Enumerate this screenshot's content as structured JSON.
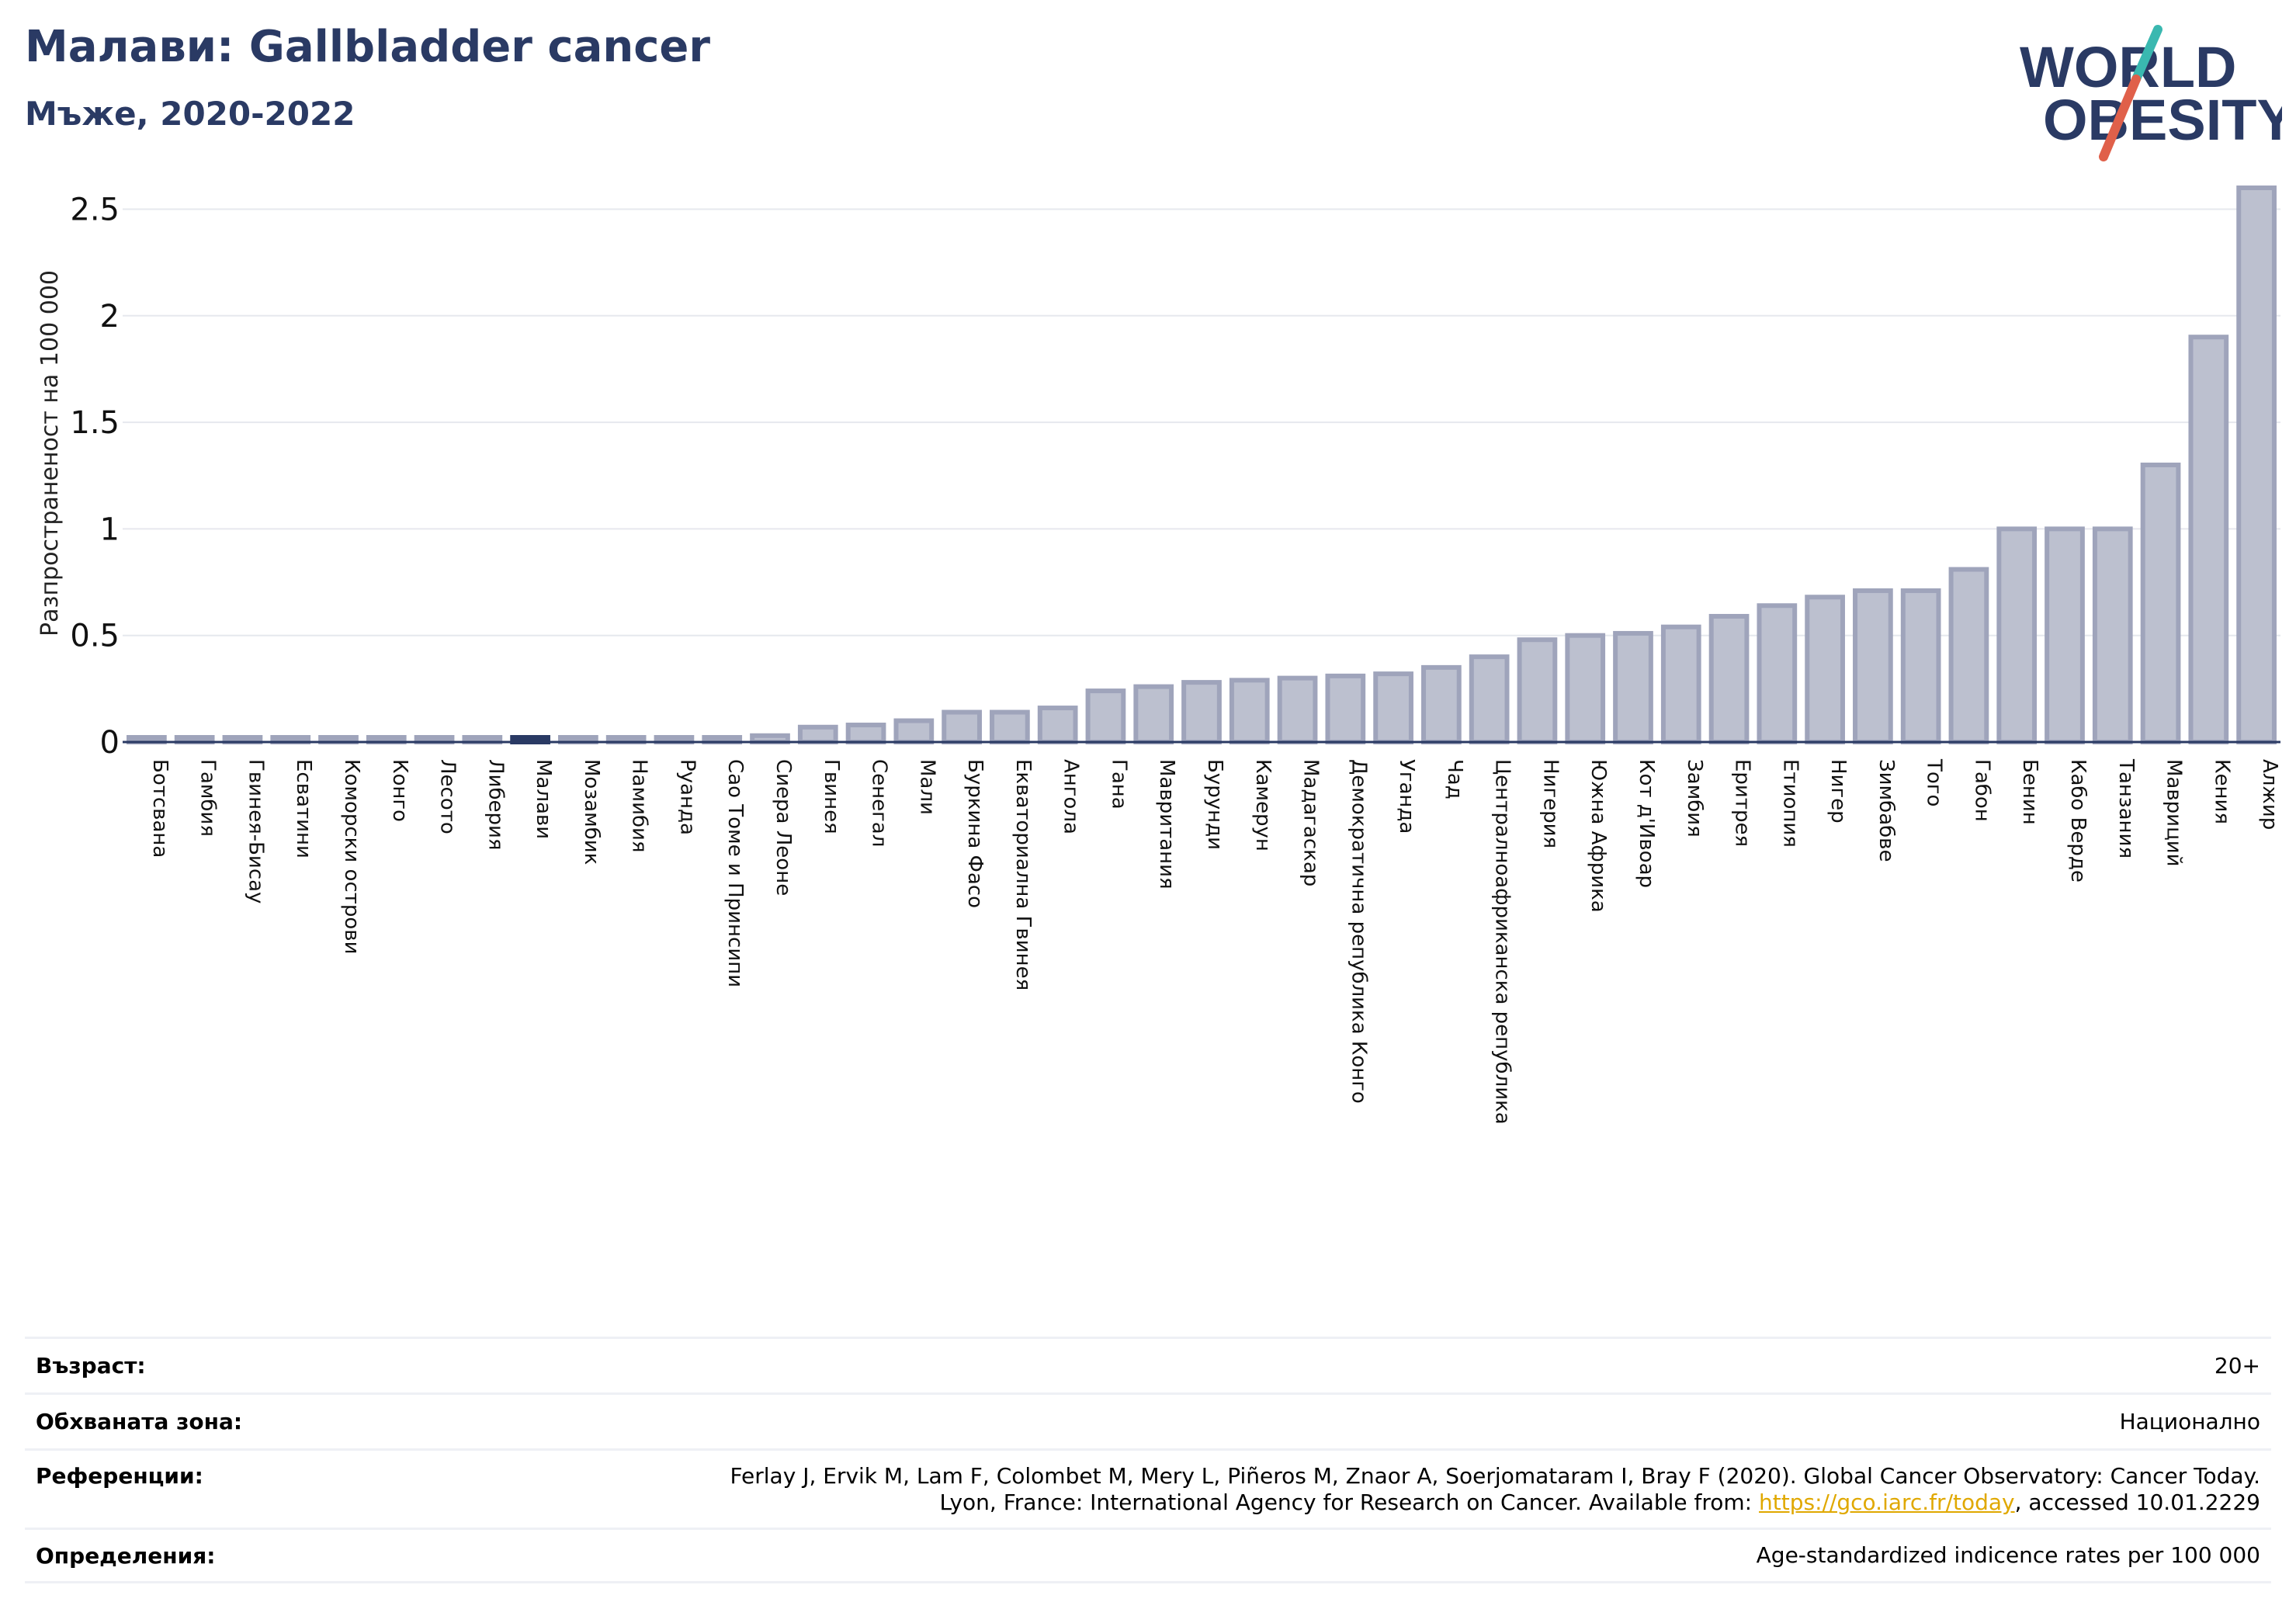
{
  "header": {
    "title": "Малави: Gallbladder cancer",
    "subtitle": "Мъже, 2020-2022",
    "logo_text_line1": "WORLD",
    "logo_text_line2": "OBESITY"
  },
  "colors": {
    "title": "#2a3a64",
    "bar_fill": "#bcc0cf",
    "bar_stroke": "#9fa4bb",
    "highlight_bar": "#2a3a64",
    "grid": "#e6e8ee",
    "logo_navy": "#2a3a64",
    "logo_teal": "#3ab8b0",
    "logo_red": "#e0604a",
    "link": "#e0a800"
  },
  "chart_data": {
    "type": "bar",
    "title": "Малави: Gallbladder cancer",
    "subtitle": "Мъже, 2020-2022",
    "xlabel": "",
    "ylabel": "Разпространеност  на 100 000",
    "ylim": [
      0,
      2.6
    ],
    "yticks": [
      0,
      0.5,
      1,
      1.5,
      2,
      2.5
    ],
    "ytick_labels": [
      "0",
      "0.5",
      "1",
      "1.5",
      "2",
      "2.5"
    ],
    "grid": true,
    "highlight": "Малави",
    "categories": [
      "Ботсвана",
      "Гамбия",
      "Гвинея-Бисау",
      "Есватини",
      "Коморски острови",
      "Конго",
      "Лесото",
      "Либерия",
      "Малави",
      "Мозамбик",
      "Намибия",
      "Руанда",
      "Сао Томе и Принсипи",
      "Сиера Леоне",
      "Гвинея",
      "Сенегал",
      "Мали",
      "Буркина Фасо",
      "Екваториална Гвинея",
      "Ангола",
      "Гана",
      "Мавритания",
      "Бурунди",
      "Камерун",
      "Мадагаскар",
      "Демократична република Конго",
      "Уганда",
      "Чад",
      "Централноафриканска република",
      "Нигерия",
      "Южна Африка",
      "Кот д'Ивоар",
      "Замбия",
      "Еритрея",
      "Етиопия",
      "Нигер",
      "Зимбабве",
      "Того",
      "Габон",
      "Бенин",
      "Кабо Верде",
      "Танзания",
      "Мавриций",
      "Кения",
      "Алжир"
    ],
    "values": [
      0,
      0,
      0,
      0,
      0,
      0,
      0,
      0,
      0,
      0,
      0,
      0,
      0,
      0.03,
      0.07,
      0.08,
      0.1,
      0.14,
      0.14,
      0.16,
      0.24,
      0.26,
      0.28,
      0.29,
      0.3,
      0.31,
      0.32,
      0.35,
      0.4,
      0.48,
      0.5,
      0.51,
      0.54,
      0.59,
      0.64,
      0.68,
      0.71,
      0.71,
      0.81,
      1.0,
      1.0,
      1.0,
      1.3,
      1.9,
      2.6
    ]
  },
  "footer": {
    "age_label": "Възраст:",
    "age_value": "20+",
    "coverage_label": "Обхваната зона:",
    "coverage_value": "Национално",
    "references_label": "Референции:",
    "references_line1": "Ferlay J, Ervik M, Lam F, Colombet M, Mery L, Piñeros M, Znaor A, Soerjomataram I, Bray F (2020). Global Cancer Observatory: Cancer Today.",
    "references_line2_pre": "Lyon, France: International Agency for Research on Cancer. Available from: ",
    "references_link": "https://gco.iarc.fr/today",
    "references_line2_post": ", accessed 10.01.2229",
    "definitions_label": "Определения:",
    "definitions_value": "Age-standardized indicence rates per 100 000"
  }
}
